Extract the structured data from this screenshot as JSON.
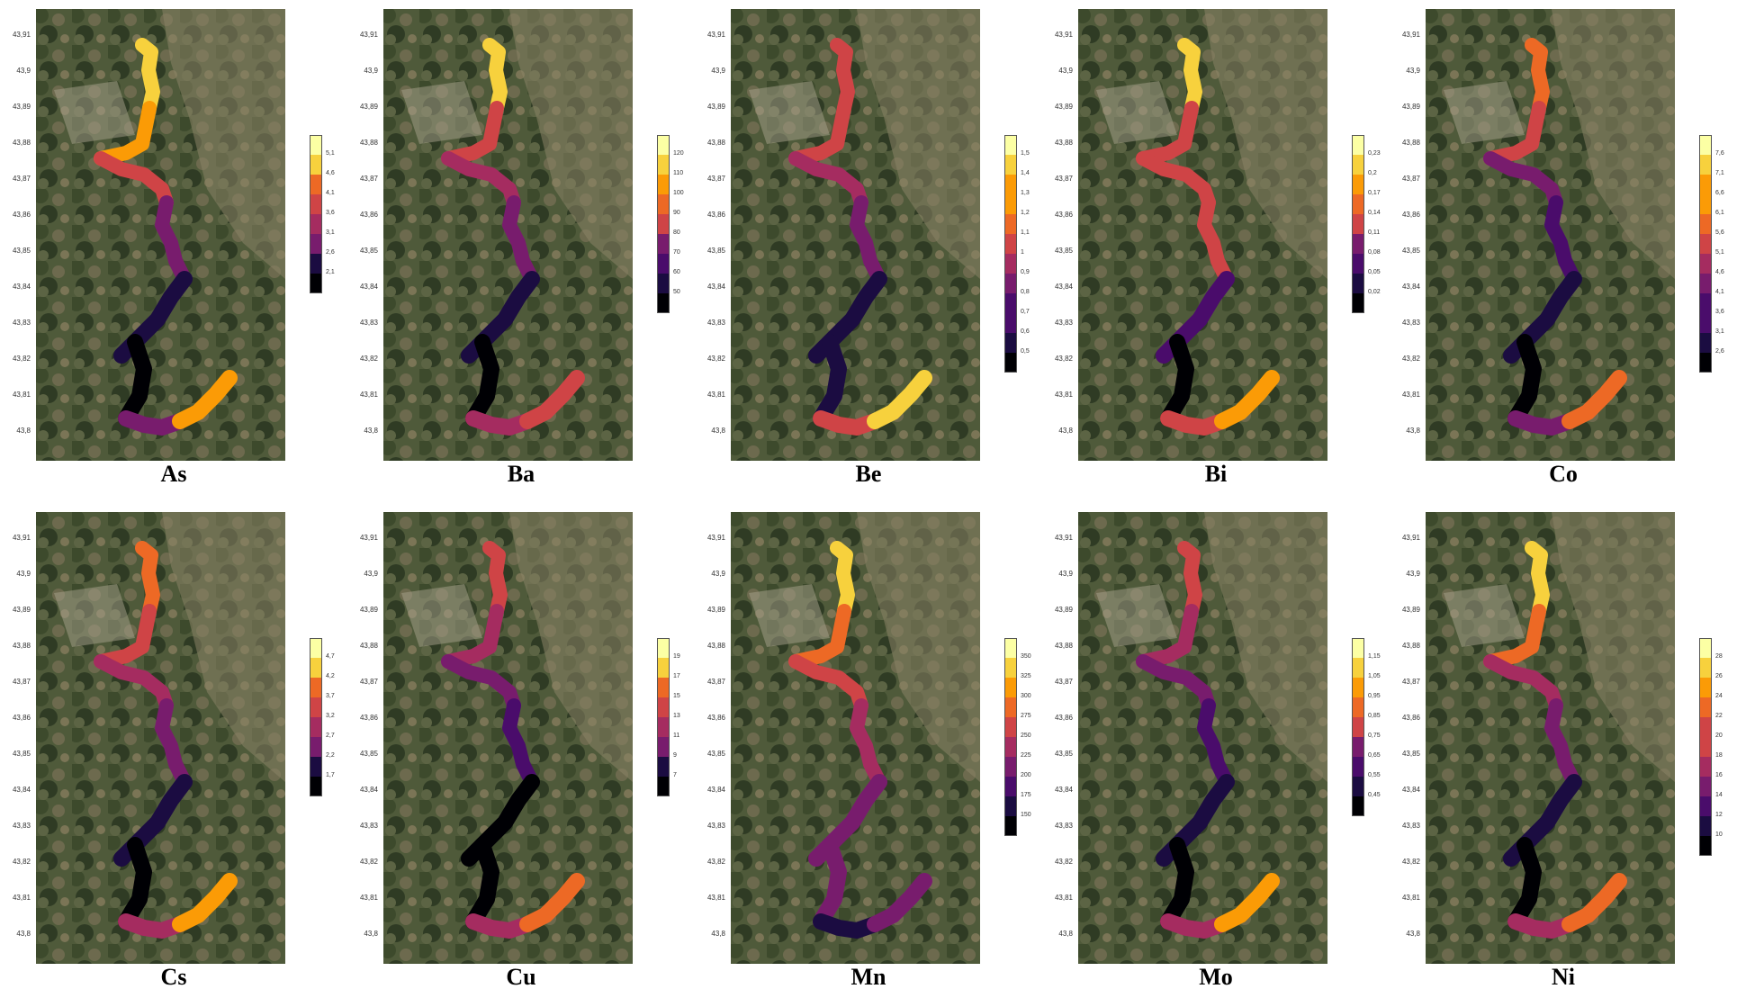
{
  "map": {
    "latitude_ticks": [
      "43,91",
      "43,9",
      "43,89",
      "43,88",
      "43,87",
      "43,86",
      "43,85",
      "43,84",
      "43,83",
      "43,82",
      "43,81",
      "43,8"
    ],
    "colormap": [
      "#000004",
      "#1b0c41",
      "#4a0c6b",
      "#781c6d",
      "#a52c60",
      "#cf4446",
      "#ed6925",
      "#fb9b06",
      "#f7d13d",
      "#fcffa4"
    ],
    "panels": [
      {
        "element": "As",
        "legend": [
          "5,1",
          "4,6",
          "4,1",
          "3,6",
          "3,1",
          "2,6",
          "2,1"
        ]
      },
      {
        "element": "Ba",
        "legend": [
          "120",
          "110",
          "100",
          "90",
          "80",
          "70",
          "60",
          "50"
        ]
      },
      {
        "element": "Be",
        "legend": [
          "1,5",
          "1,4",
          "1,3",
          "1,2",
          "1,1",
          "1",
          "0,9",
          "0,8",
          "0,7",
          "0,6",
          "0,5"
        ]
      },
      {
        "element": "Bi",
        "legend": [
          "0,23",
          "0,2",
          "0,17",
          "0,14",
          "0,11",
          "0,08",
          "0,05",
          "0,02"
        ]
      },
      {
        "element": "Co",
        "legend": [
          "7,6",
          "7,1",
          "6,6",
          "6,1",
          "5,6",
          "5,1",
          "4,6",
          "4,1",
          "3,6",
          "3,1",
          "2,6"
        ]
      },
      {
        "element": "Cs",
        "legend": [
          "4,7",
          "4,2",
          "3,7",
          "3,2",
          "2,7",
          "2,2",
          "1,7"
        ]
      },
      {
        "element": "Cu",
        "legend": [
          "19",
          "17",
          "15",
          "13",
          "11",
          "9",
          "7"
        ]
      },
      {
        "element": "Mn",
        "legend": [
          "350",
          "325",
          "300",
          "275",
          "250",
          "225",
          "200",
          "175",
          "150"
        ]
      },
      {
        "element": "Mo",
        "legend": [
          "1,15",
          "1,05",
          "0,95",
          "0,85",
          "0,75",
          "0,65",
          "0,55",
          "0,45"
        ]
      },
      {
        "element": "Ni",
        "legend": [
          "28",
          "26",
          "24",
          "22",
          "20",
          "18",
          "16",
          "14",
          "12",
          "10"
        ]
      }
    ]
  }
}
